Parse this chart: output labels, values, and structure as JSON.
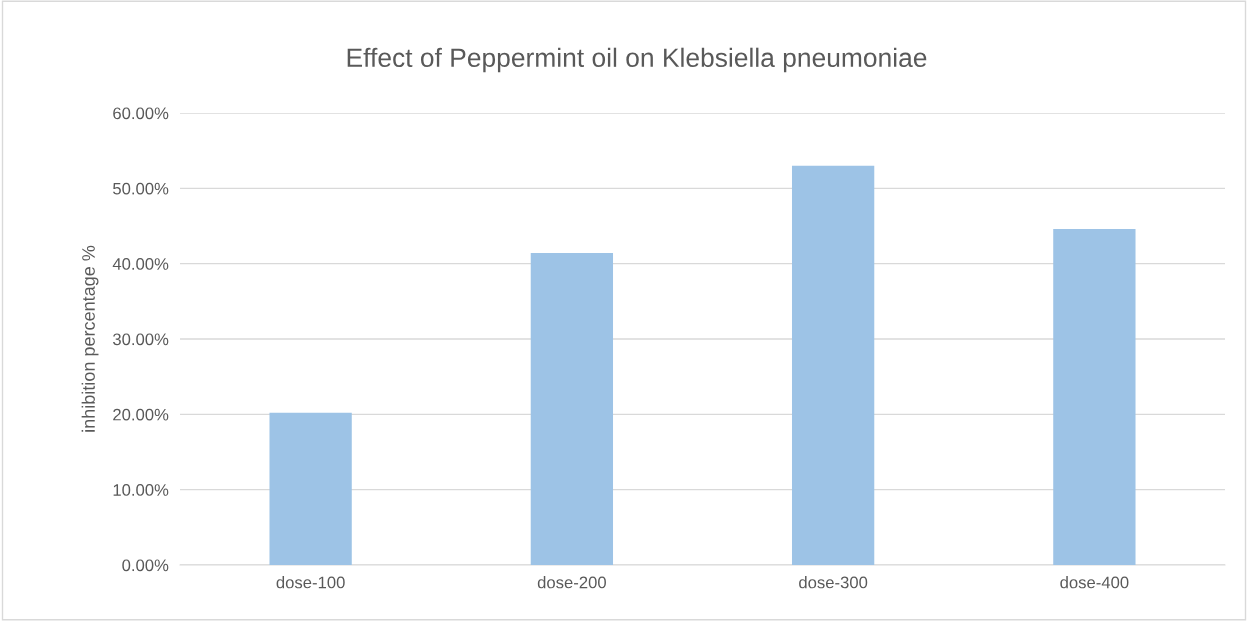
{
  "chart_data": {
    "type": "bar",
    "title": "Effect of Peppermint oil on Klebsiella pneumoniae",
    "ylabel": "inhibition percentage %",
    "categories": [
      "dose-100",
      "dose-200",
      "dose-300",
      "dose-400"
    ],
    "values": [
      20.2,
      41.4,
      53.0,
      44.6
    ],
    "color": "#9dc3e6",
    "ylim": [
      0,
      60
    ],
    "yticks": [
      {
        "value": 0,
        "label": "0.00%"
      },
      {
        "value": 10,
        "label": "10.00%"
      },
      {
        "value": 20,
        "label": "20.00%"
      },
      {
        "value": 30,
        "label": "30.00%"
      },
      {
        "value": 40,
        "label": "40.00%"
      },
      {
        "value": 50,
        "label": "50.00%"
      },
      {
        "value": 60,
        "label": "60.00%"
      }
    ],
    "grid": "y",
    "legend": false
  }
}
